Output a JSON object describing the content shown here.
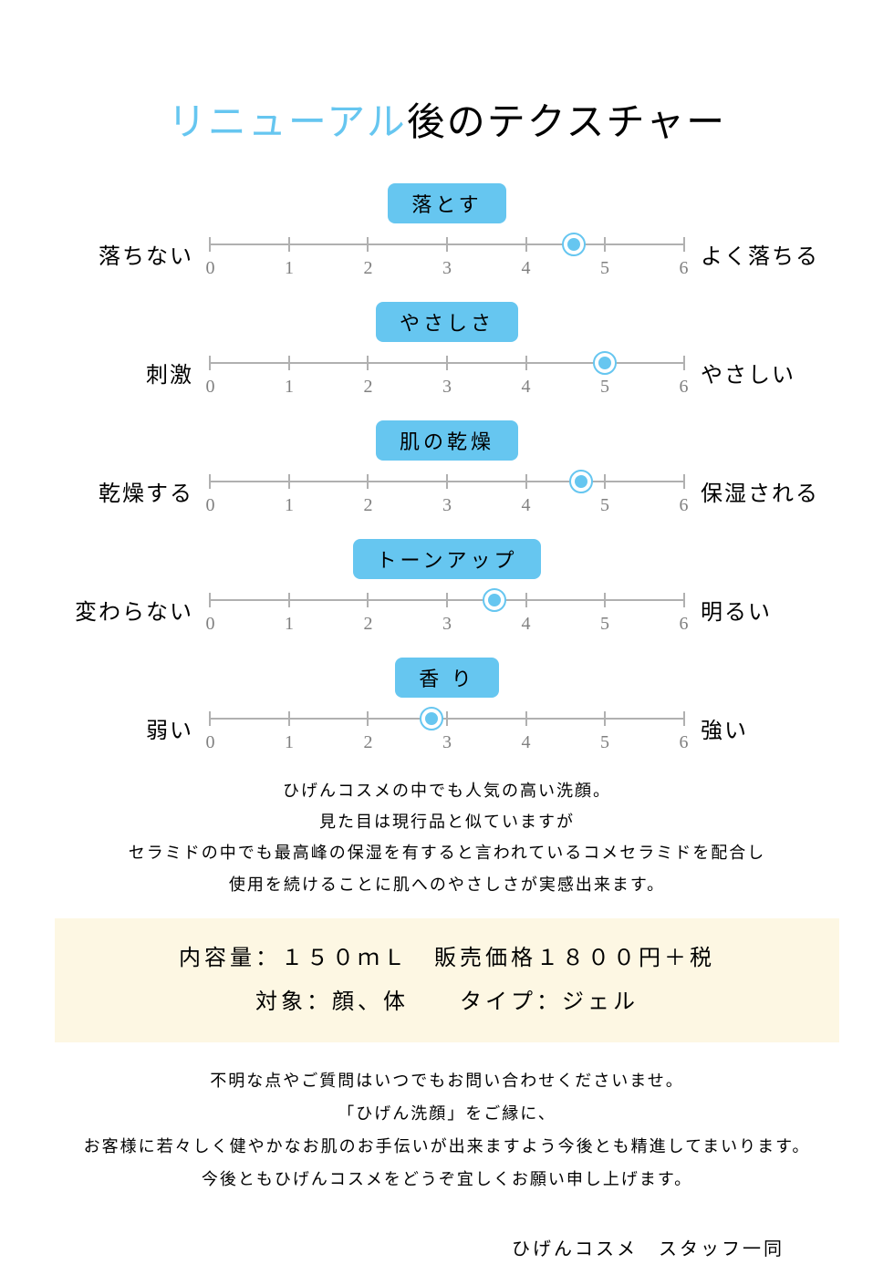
{
  "title": {
    "highlight": "リニューアル",
    "rest": "後のテクスチャー",
    "highlight_color": "#66c6f0"
  },
  "scale": {
    "min": 0,
    "max": 6,
    "ticks": [
      0,
      1,
      2,
      3,
      4,
      5,
      6
    ],
    "track_color": "#b0b0b0",
    "tick_color": "#b0b0b0",
    "number_color": "#808080",
    "marker_fill": "#66c6f0",
    "marker_ring": "#ffffff",
    "marker_outer": "#66c6f0",
    "marker_size": 26,
    "tag_bg": "#66c6f0",
    "tag_color": "#000000"
  },
  "sliders": [
    {
      "tag": "落とす",
      "left": "落ちない",
      "right": "よく落ちる",
      "value": 4.6
    },
    {
      "tag": "やさしさ",
      "left": "刺激",
      "right": "やさしい",
      "value": 5.0
    },
    {
      "tag": "肌の乾燥",
      "left": "乾燥する",
      "right": "保湿される",
      "value": 4.7
    },
    {
      "tag": "トーンアップ",
      "left": "変わらない",
      "right": "明るい",
      "value": 3.6
    },
    {
      "tag": "香 り",
      "left": "弱い",
      "right": "強い",
      "value": 2.8
    }
  ],
  "description": [
    "ひげんコスメの中でも人気の高い洗顔。",
    "見た目は現行品と似ていますが",
    "セラミドの中でも最高峰の保湿を有すると言われているコメセラミドを配合し",
    "使用を続けることに肌へのやさしさが実感出来ます。"
  ],
  "info_box": {
    "bg": "#fdf7e3",
    "line1": "内容量：１５０ｍＬ　販売価格１８００円＋税",
    "line2": "対象：顔、体　　タイプ：ジェル"
  },
  "closing": [
    "不明な点やご質問はいつでもお問い合わせくださいませ。",
    "「ひげん洗顔」をご縁に、",
    "お客様に若々しく健やかなお肌のお手伝いが出来ますよう今後とも精進してまいります。",
    "今後ともひげんコスメをどうぞ宜しくお願い申し上げます。"
  ],
  "signature": "ひげんコスメ　スタッフ一同"
}
